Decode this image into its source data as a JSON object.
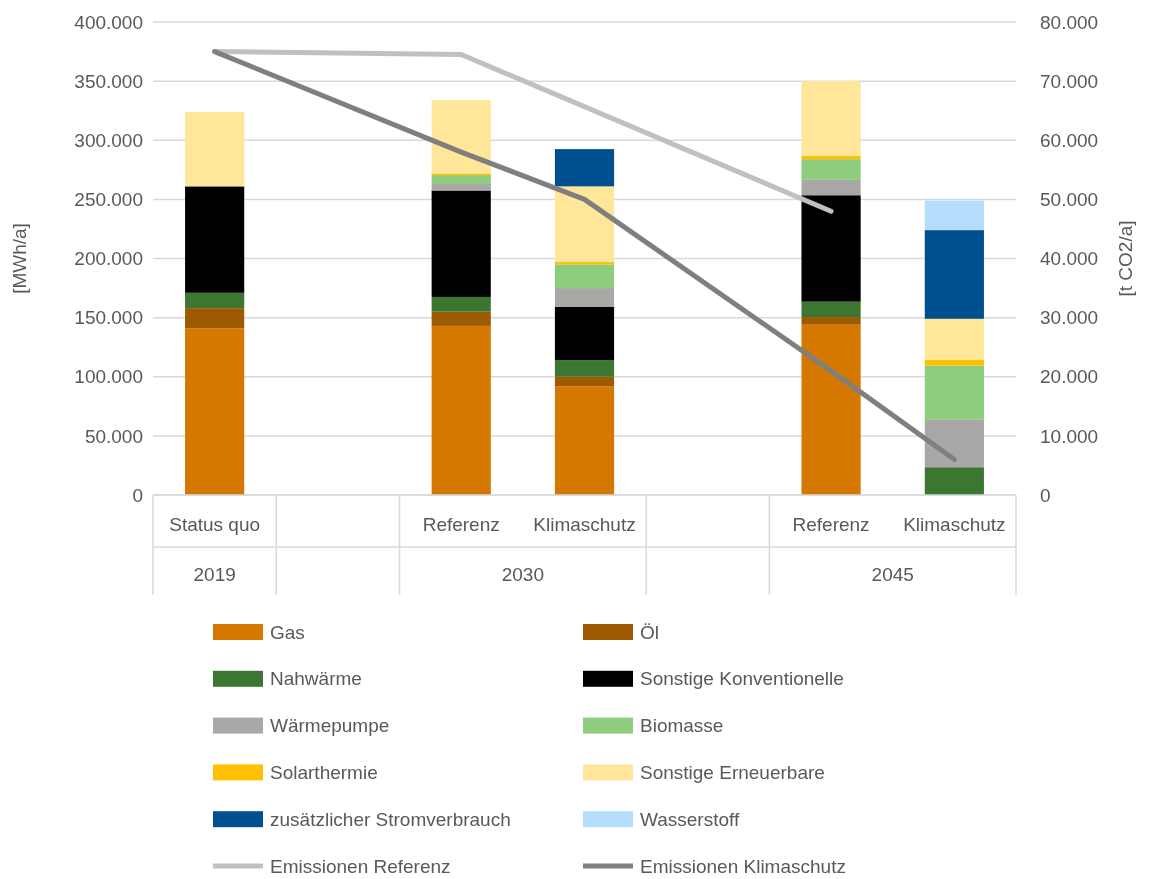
{
  "chart_data": {
    "type": "bar",
    "stacked": true,
    "categories": [
      "Status quo",
      null,
      "Referenz",
      "Klimaschutz",
      null,
      "Referenz",
      "Klimaschutz"
    ],
    "annotations": [
      "2019",
      "2030",
      "2045"
    ],
    "ylabel": "[MWh/a]",
    "y2label": "[t CO2/a]",
    "ylim": [
      0,
      400000
    ],
    "yticks": [
      {
        "value": 0,
        "label": "0"
      },
      {
        "value": 50000,
        "label": "50.000"
      },
      {
        "value": 100000,
        "label": "100.000"
      },
      {
        "value": 150000,
        "label": "150.000"
      },
      {
        "value": 200000,
        "label": "200.000"
      },
      {
        "value": 250000,
        "label": "250.000"
      },
      {
        "value": 300000,
        "label": "300.000"
      },
      {
        "value": 350000,
        "label": "350.000"
      },
      {
        "value": 400000,
        "label": "400.000"
      }
    ],
    "y2lim": [
      0,
      80000
    ],
    "y2ticks": [
      {
        "value": 0,
        "label": "0"
      },
      {
        "value": 10000,
        "label": "10.000"
      },
      {
        "value": 20000,
        "label": "20.000"
      },
      {
        "value": 30000,
        "label": "30.000"
      },
      {
        "value": 40000,
        "label": "40.000"
      },
      {
        "value": 50000,
        "label": "50.000"
      },
      {
        "value": 60000,
        "label": "60.000"
      },
      {
        "value": 70000,
        "label": "70.000"
      },
      {
        "value": 80000,
        "label": "80.000"
      }
    ],
    "grid": "y",
    "legend": "bottom",
    "series": [
      {
        "name": "Gas",
        "color": "#d47800",
        "values": [
          141000,
          null,
          143000,
          92000,
          null,
          144000,
          0
        ]
      },
      {
        "name": "Öl",
        "color": "#9e5a00",
        "values": [
          17000,
          null,
          12000,
          8000,
          null,
          6500,
          0
        ]
      },
      {
        "name": "Nahwärme",
        "color": "#3b7730",
        "values": [
          13000,
          null,
          12500,
          14000,
          null,
          13000,
          23500
        ]
      },
      {
        "name": "Sonstige Konventionelle",
        "color": "#000000",
        "values": [
          90000,
          null,
          90000,
          45000,
          null,
          90000,
          0
        ]
      },
      {
        "name": "Wärmepumpe",
        "color": "#aaa8a6",
        "values": [
          0,
          null,
          5500,
          16000,
          null,
          13000,
          40000
        ]
      },
      {
        "name": "Biomasse",
        "color": "#8ecd7e",
        "values": [
          0,
          null,
          7500,
          20000,
          null,
          17500,
          46000
        ]
      },
      {
        "name": "Solarthermie",
        "color": "#ffc000",
        "values": [
          0,
          null,
          1500,
          2000,
          null,
          3000,
          5000
        ]
      },
      {
        "name": "Sonstige Erneuerbare",
        "color": "#ffe699",
        "values": [
          63000,
          null,
          62000,
          64000,
          null,
          63000,
          34500
        ]
      },
      {
        "name": "zusätzlicher Stromverbrauch",
        "color": "#00508f",
        "values": [
          0,
          null,
          0,
          31500,
          null,
          0,
          75000
        ]
      },
      {
        "name": "Wasserstoff",
        "color": "#b4ddfc",
        "values": [
          0,
          null,
          0,
          0,
          null,
          0,
          25000
        ]
      },
      {
        "name": "Emissionen Referenz",
        "type": "line",
        "axis": "y2",
        "color": "#c0c0c0",
        "values": [
          75000,
          null,
          74500,
          null,
          null,
          48000,
          null
        ]
      },
      {
        "name": "Emissionen Klimaschutz",
        "type": "line",
        "axis": "y2",
        "color": "#7f7f7f",
        "values": [
          75000,
          null,
          58000,
          50000,
          null,
          21000,
          6000
        ]
      }
    ]
  }
}
